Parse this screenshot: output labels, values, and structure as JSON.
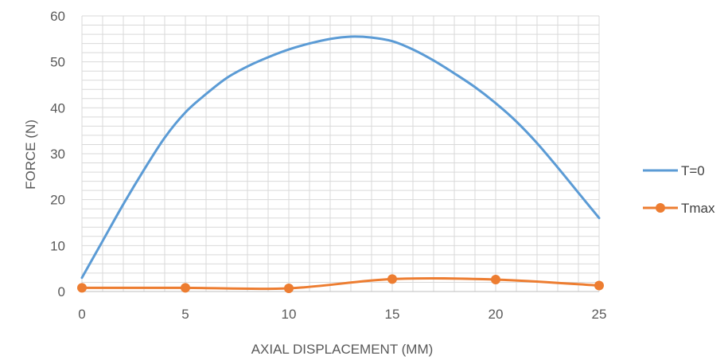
{
  "chart_data": {
    "type": "line",
    "title": "",
    "xlabel": "AXIAL DISPLACEMENT  (MM)",
    "ylabel": "FORCE (N)",
    "xlim": [
      0,
      25
    ],
    "ylim": [
      0,
      60
    ],
    "xticks": [
      0,
      5,
      10,
      15,
      20,
      25
    ],
    "yticks": [
      0,
      10,
      20,
      30,
      40,
      50,
      60
    ],
    "x_tick_labels": [
      "0",
      "5",
      "10",
      "15",
      "20",
      "25"
    ],
    "y_tick_labels": [
      "0",
      "10",
      "20",
      "30",
      "40",
      "50",
      "60"
    ],
    "grid": true,
    "legend_position": "right",
    "series": [
      {
        "name": "T=0",
        "color": "#5B9BD5",
        "markers": false,
        "x": [
          0,
          1,
          2,
          3,
          4,
          5,
          6,
          7,
          8,
          9,
          10,
          11,
          12,
          13,
          14,
          15,
          16,
          17,
          18,
          19,
          20,
          21,
          22,
          23,
          24,
          25
        ],
        "y": [
          3,
          11,
          19,
          26.5,
          33.5,
          39,
          43,
          46.5,
          49,
          51,
          52.7,
          54,
          55,
          55.5,
          55.3,
          54.5,
          52.7,
          50.3,
          47.5,
          44.5,
          41,
          37,
          32.3,
          27,
          21.5,
          16
        ]
      },
      {
        "name": "Tmax",
        "color": "#ED7D31",
        "markers": true,
        "x": [
          0,
          5,
          10,
          15,
          20,
          25
        ],
        "y": [
          0.8,
          0.8,
          0.7,
          2.7,
          2.6,
          1.3
        ]
      }
    ]
  }
}
